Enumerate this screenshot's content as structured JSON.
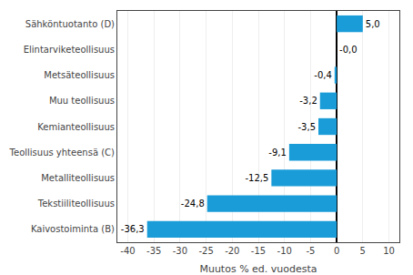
{
  "chart_data": {
    "type": "bar",
    "orientation": "horizontal",
    "categories": [
      "Kaivostoiminta (B)",
      "Tekstiiliteollisuus",
      "Metalliteollisuus",
      "Teollisuus yhteensä (C)",
      "Kemianteollisuus",
      "Muu teollisuus",
      "Metsäteollisuus",
      "Elintarviketeollisuus",
      "Sähköntuotanto (D)"
    ],
    "values": [
      -36.3,
      -24.8,
      -12.5,
      -9.1,
      -3.5,
      -3.2,
      -0.4,
      -0.0,
      5.0
    ],
    "value_labels": [
      "-36,3",
      "-24,8",
      "-12,5",
      "-9,1",
      "-3,5",
      "-3,2",
      "-0,4",
      "-0,0",
      "5,0"
    ],
    "data_labels": true,
    "color": "#1a9cd8",
    "xlabel": "Muutos % ed. vuodesta",
    "xlim": [
      -42,
      12
    ],
    "xticks": [
      -40,
      -35,
      -30,
      -25,
      -20,
      -15,
      -10,
      -5,
      0,
      5,
      10
    ],
    "grid": true
  }
}
